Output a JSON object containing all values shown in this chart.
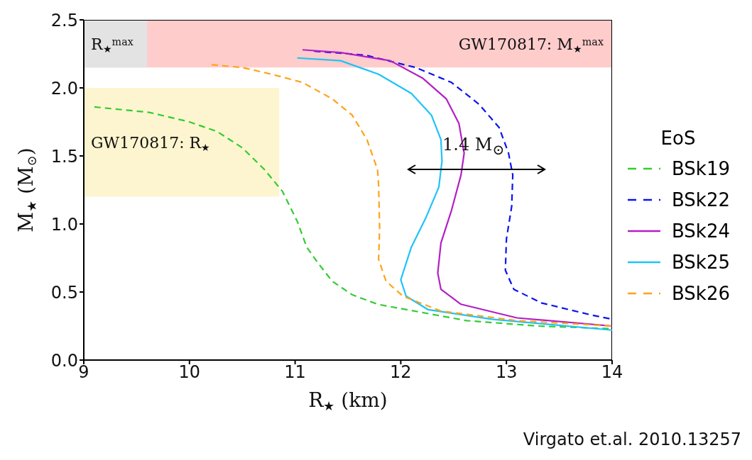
{
  "chart_data": {
    "type": "line",
    "xlabel": "R$_{★}$ (km)",
    "ylabel": "M$_{★}$ (M$_{⊙}$)",
    "legend_title": "EoS",
    "legend": "right",
    "xlim": [
      9,
      14
    ],
    "xticks": [
      9,
      10,
      11,
      12,
      13,
      14
    ],
    "ylim": [
      0,
      2.5
    ],
    "yticks": [
      {
        "value": 0,
        "label": "0.0"
      },
      0.5,
      {
        "value": 1,
        "label": "1.0"
      },
      1.5,
      {
        "value": 2,
        "label": "2.0"
      },
      2.5
    ],
    "grid": false,
    "series": [
      {
        "name": "BSk19",
        "color": "#33cc33",
        "line_style": "dashed",
        "x": [
          9.1,
          9.62,
          10.0,
          10.26,
          10.5,
          10.71,
          10.88,
          11.02,
          11.11,
          11.21,
          11.35,
          11.54,
          11.78,
          12.62,
          13.3,
          14.0
        ],
        "values": [
          1.86,
          1.82,
          1.75,
          1.68,
          1.56,
          1.4,
          1.24,
          1.02,
          0.83,
          0.72,
          0.58,
          0.48,
          0.41,
          0.29,
          0.25,
          0.23
        ]
      },
      {
        "name": "BSk22",
        "color": "#0a14f0",
        "line_style": "dashed",
        "x": [
          11.18,
          11.67,
          12.14,
          12.48,
          12.74,
          12.93,
          13.02,
          13.06,
          13.05,
          13.0,
          12.99,
          13.07,
          13.33,
          13.81,
          14.0
        ],
        "values": [
          2.27,
          2.24,
          2.15,
          2.04,
          1.88,
          1.71,
          1.52,
          1.36,
          1.13,
          0.89,
          0.66,
          0.52,
          0.42,
          0.33,
          0.3
        ]
      },
      {
        "name": "BSk24",
        "color": "#b31fc4",
        "line_style": "solid",
        "x": [
          11.07,
          11.43,
          11.9,
          12.21,
          12.43,
          12.55,
          12.6,
          12.57,
          12.48,
          12.38,
          12.35,
          12.38,
          12.57,
          13.1,
          14.0
        ],
        "values": [
          2.28,
          2.26,
          2.2,
          2.07,
          1.92,
          1.74,
          1.52,
          1.36,
          1.1,
          0.86,
          0.64,
          0.52,
          0.41,
          0.31,
          0.25
        ]
      },
      {
        "name": "BSk25",
        "color": "#1ec3f7",
        "line_style": "solid",
        "x": [
          11.02,
          11.43,
          11.79,
          12.1,
          12.29,
          12.38,
          12.39,
          12.36,
          12.24,
          12.1,
          12.0,
          12.05,
          12.26,
          12.86,
          14.0
        ],
        "values": [
          2.22,
          2.2,
          2.1,
          1.96,
          1.8,
          1.62,
          1.46,
          1.27,
          1.05,
          0.83,
          0.59,
          0.47,
          0.37,
          0.3,
          0.22
        ]
      },
      {
        "name": "BSk26",
        "color": "#ffa31a",
        "line_style": "dashed",
        "x": [
          10.21,
          10.5,
          10.78,
          11.07,
          11.35,
          11.54,
          11.68,
          11.78,
          11.79,
          11.8,
          11.79,
          11.86,
          12.02,
          12.38,
          13.1,
          14.0
        ],
        "values": [
          2.17,
          2.15,
          2.1,
          2.04,
          1.92,
          1.8,
          1.62,
          1.4,
          1.29,
          0.97,
          0.74,
          0.58,
          0.47,
          0.36,
          0.29,
          0.25
        ]
      }
    ],
    "bands": [
      {
        "axis": "y",
        "from": 2.15,
        "to": 2.5,
        "label": "GW170817: M$_{★}$$^{max}$",
        "color": "#ffcccc"
      },
      {
        "axis": "x",
        "from": 9,
        "to": 9.6,
        "label": "R$_{★}$$^{max}$",
        "color": "#e3e3e3"
      },
      {
        "axis": "x",
        "from": 9,
        "to": 10.85,
        "label": "GW170817: R$_{★}$",
        "color": "#fdf5cf"
      }
    ],
    "annotations": [
      "1.4 M$_{⊙}$",
      "Virgato et.al. 2010.13257"
    ]
  }
}
